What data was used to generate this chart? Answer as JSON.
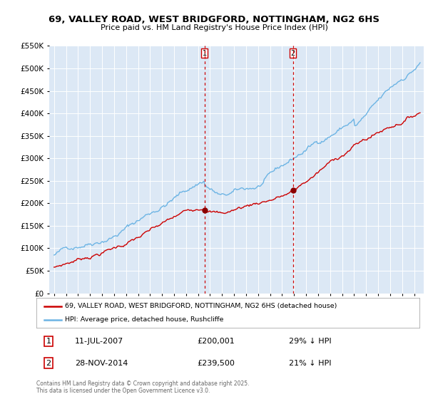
{
  "title": "69, VALLEY ROAD, WEST BRIDGFORD, NOTTINGHAM, NG2 6HS",
  "subtitle": "Price paid vs. HM Land Registry's House Price Index (HPI)",
  "legend_line1": "69, VALLEY ROAD, WEST BRIDGFORD, NOTTINGHAM, NG2 6HS (detached house)",
  "legend_line2": "HPI: Average price, detached house, Rushcliffe",
  "marker1_date": "11-JUL-2007",
  "marker1_price": 200001,
  "marker1_label": "29% ↓ HPI",
  "marker2_date": "28-NOV-2014",
  "marker2_price": 239500,
  "marker2_label": "21% ↓ HPI",
  "footnote": "Contains HM Land Registry data © Crown copyright and database right 2025.\nThis data is licensed under the Open Government Licence v3.0.",
  "hpi_color": "#6cb4e4",
  "price_color": "#cc0000",
  "marker_color": "#8b0000",
  "vline_color": "#cc0000",
  "shade_color": "#dce8f5",
  "background_color": "#dce8f5",
  "ylim": [
    0,
    550000
  ],
  "yticks": [
    0,
    50000,
    100000,
    150000,
    200000,
    250000,
    300000,
    350000,
    400000,
    450000,
    500000,
    550000
  ],
  "year_start": 1995,
  "year_end": 2025,
  "marker1_year": 2007.53,
  "marker2_year": 2014.91
}
